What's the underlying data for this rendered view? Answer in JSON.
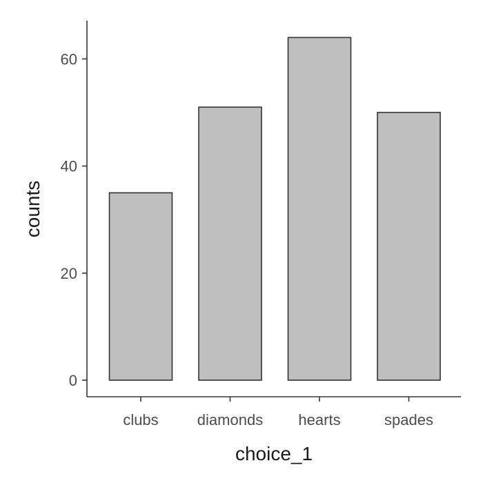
{
  "chart_data": {
    "type": "bar",
    "categories": [
      "clubs",
      "diamonds",
      "hearts",
      "spades"
    ],
    "values": [
      35,
      51,
      64,
      50
    ],
    "xlabel": "choice_1",
    "ylabel": "counts",
    "ylim": [
      0,
      67
    ],
    "yticks": [
      0,
      20,
      40,
      60
    ],
    "grid": false,
    "legend": "none",
    "colors": {
      "bar_fill": "#bfbfbf",
      "bar_stroke": "#333333",
      "axis": "#333333"
    }
  }
}
